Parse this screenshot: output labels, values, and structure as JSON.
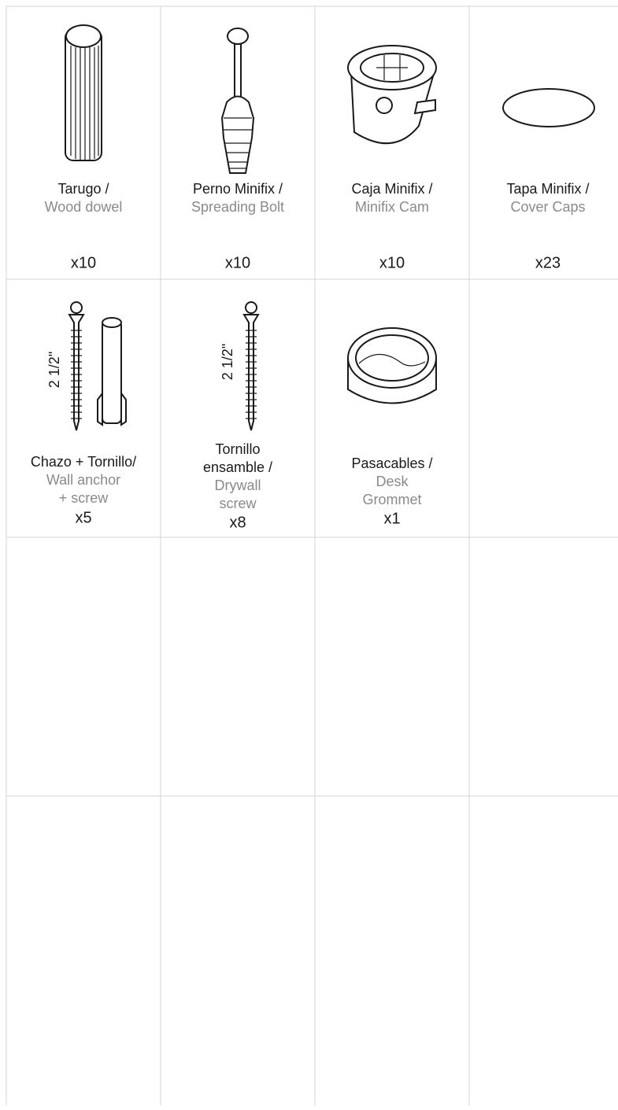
{
  "parts": [
    {
      "name": [
        "Tarugo /"
      ],
      "translation": [
        "Wood dowel"
      ],
      "quantity": "x10"
    },
    {
      "name": [
        "Perno Minifix /"
      ],
      "translation": [
        "Spreading Bolt"
      ],
      "quantity": "x10"
    },
    {
      "name": [
        "Caja Minifix /"
      ],
      "translation": [
        "Minifix Cam"
      ],
      "quantity": "x10"
    },
    {
      "name": [
        "Tapa Minifix /"
      ],
      "translation": [
        "Cover Caps"
      ],
      "quantity": "x23"
    },
    {
      "name": [
        "Chazo + Tornillo/"
      ],
      "translation": [
        "Wall anchor",
        "+ screw"
      ],
      "quantity": "x5",
      "size_label": "2 1/2\""
    },
    {
      "name": [
        "Tornillo",
        "ensamble /"
      ],
      "translation": [
        "Drywall",
        "screw"
      ],
      "quantity": "x8",
      "size_label": "2 1/2\""
    },
    {
      "name": [
        "Pasacables /"
      ],
      "translation": [
        "Desk",
        "Grommet"
      ],
      "quantity": "x1"
    }
  ]
}
